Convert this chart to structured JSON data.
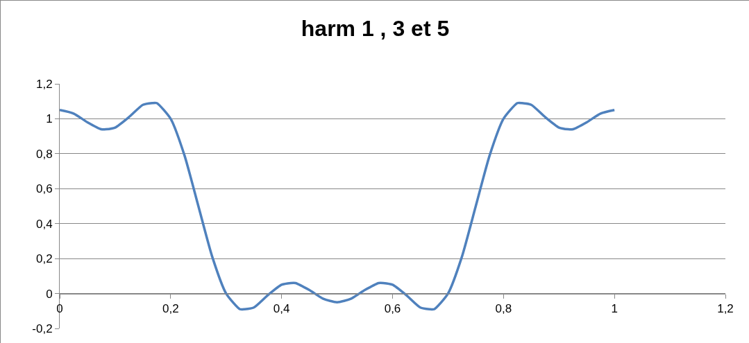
{
  "chart_data": {
    "type": "line",
    "title": "harm 1 , 3 et 5",
    "x": [
      0,
      0.025,
      0.05,
      0.075,
      0.0833,
      0.1,
      0.125,
      0.15,
      0.1667,
      0.175,
      0.2,
      0.225,
      0.25,
      0.275,
      0.3,
      0.325,
      0.3333,
      0.35,
      0.375,
      0.4,
      0.4167,
      0.425,
      0.45,
      0.475,
      0.5,
      0.525,
      0.55,
      0.575,
      0.5833,
      0.6,
      0.625,
      0.65,
      0.6667,
      0.675,
      0.7,
      0.725,
      0.75,
      0.775,
      0.8,
      0.825,
      0.8333,
      0.85,
      0.875,
      0.9,
      0.9167,
      0.925,
      0.95,
      0.975,
      1
    ],
    "series": [
      {
        "color": "#4f81bd",
        "values": [
          1.05,
          1.03,
          0.98,
          0.94,
          0.94,
          0.95,
          1.01,
          1.08,
          1.09,
          1.09,
          1.0,
          0.79,
          0.5,
          0.21,
          0.0,
          -0.09,
          -0.09,
          -0.08,
          -0.01,
          0.05,
          0.06,
          0.06,
          0.02,
          -0.03,
          -0.05,
          -0.03,
          0.02,
          0.06,
          0.06,
          0.05,
          -0.01,
          -0.08,
          -0.09,
          -0.09,
          0.0,
          0.21,
          0.5,
          0.79,
          1.0,
          1.09,
          1.09,
          1.08,
          1.01,
          0.95,
          0.94,
          0.94,
          0.98,
          1.03,
          1.05
        ]
      }
    ],
    "xlim": [
      0,
      1.2
    ],
    "xticks": [
      0,
      {
        "value": 0.2,
        "label": "0,2"
      },
      {
        "value": 0.4,
        "label": "0,4"
      },
      {
        "value": 0.6,
        "label": "0,6"
      },
      {
        "value": 0.8,
        "label": "0,8"
      },
      1,
      {
        "value": 1.2,
        "label": "1,2"
      }
    ],
    "ylim": [
      -0.2,
      1.2
    ],
    "yticks": [
      {
        "value": -0.2,
        "label": "-0,2"
      },
      0,
      {
        "value": 0.2,
        "label": "0,2"
      },
      {
        "value": 0.4,
        "label": "0,4"
      },
      {
        "value": 0.6,
        "label": "0,6"
      },
      {
        "value": 0.8,
        "label": "0,8"
      },
      1,
      {
        "value": 1.2,
        "label": "1,2"
      }
    ],
    "grid": "y",
    "marker": "none",
    "line_style": "solid"
  }
}
